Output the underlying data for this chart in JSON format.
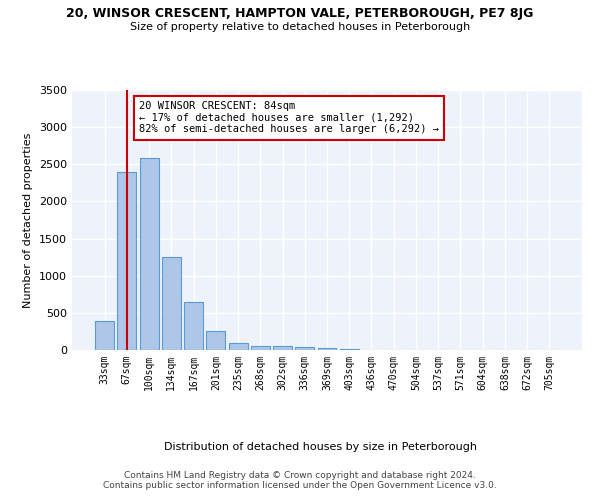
{
  "title1": "20, WINSOR CRESCENT, HAMPTON VALE, PETERBOROUGH, PE7 8JG",
  "title2": "Size of property relative to detached houses in Peterborough",
  "xlabel": "Distribution of detached houses by size in Peterborough",
  "ylabel": "Number of detached properties",
  "categories": [
    "33sqm",
    "67sqm",
    "100sqm",
    "134sqm",
    "167sqm",
    "201sqm",
    "235sqm",
    "268sqm",
    "302sqm",
    "336sqm",
    "369sqm",
    "403sqm",
    "436sqm",
    "470sqm",
    "504sqm",
    "537sqm",
    "571sqm",
    "604sqm",
    "638sqm",
    "672sqm",
    "705sqm"
  ],
  "values": [
    390,
    2390,
    2590,
    1250,
    640,
    255,
    90,
    60,
    55,
    45,
    30,
    10,
    5,
    3,
    2,
    1,
    1,
    0,
    0,
    0,
    0
  ],
  "bar_color": "#aec6e8",
  "bar_edge_color": "#5b9bd5",
  "bg_color": "#eef2fa",
  "grid_color": "#ffffff",
  "red_line_x": 1,
  "annotation_text": "20 WINSOR CRESCENT: 84sqm\n← 17% of detached houses are smaller (1,292)\n82% of semi-detached houses are larger (6,292) →",
  "annotation_box_color": "#ffffff",
  "annotation_box_edge": "#cc0000",
  "footer": "Contains HM Land Registry data © Crown copyright and database right 2024.\nContains public sector information licensed under the Open Government Licence v3.0.",
  "ylim": [
    0,
    3500
  ],
  "yticks": [
    0,
    500,
    1000,
    1500,
    2000,
    2500,
    3000,
    3500
  ]
}
